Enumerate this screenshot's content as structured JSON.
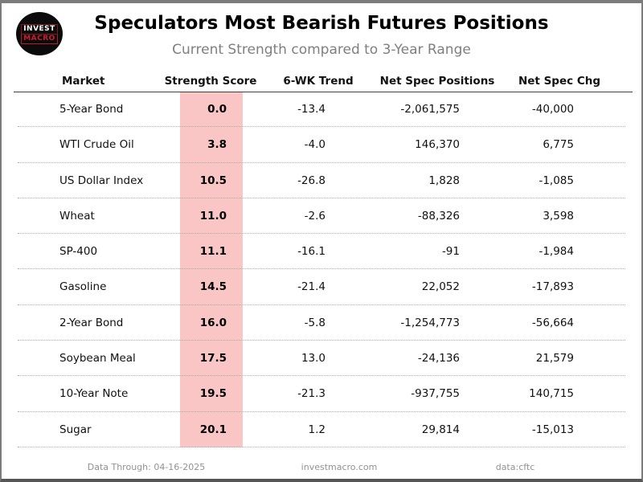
{
  "header": {
    "title": "Speculators Most Bearish Futures Positions",
    "subtitle": "Current Strength compared to 3-Year Range",
    "logo": {
      "line1": "INVEST",
      "line2": "MACRO"
    }
  },
  "chart_data": {
    "type": "table",
    "title": "Speculators Most Bearish Futures Positions",
    "subtitle": "Current Strength compared to 3-Year Range",
    "columns": [
      "Market",
      "Strength Score",
      "6-WK Trend",
      "Net Spec Positions",
      "Net Spec Chg"
    ],
    "rows": [
      {
        "market": "5-Year Bond",
        "strength_score": "0.0",
        "six_wk_trend": "-13.4",
        "net_spec_positions": "-2,061,575",
        "net_spec_chg": "-40,000"
      },
      {
        "market": "WTI Crude Oil",
        "strength_score": "3.8",
        "six_wk_trend": "-4.0",
        "net_spec_positions": "146,370",
        "net_spec_chg": "6,775"
      },
      {
        "market": "US Dollar Index",
        "strength_score": "10.5",
        "six_wk_trend": "-26.8",
        "net_spec_positions": "1,828",
        "net_spec_chg": "-1,085"
      },
      {
        "market": "Wheat",
        "strength_score": "11.0",
        "six_wk_trend": "-2.6",
        "net_spec_positions": "-88,326",
        "net_spec_chg": "3,598"
      },
      {
        "market": "SP-400",
        "strength_score": "11.1",
        "six_wk_trend": "-16.1",
        "net_spec_positions": "-91",
        "net_spec_chg": "-1,984"
      },
      {
        "market": "Gasoline",
        "strength_score": "14.5",
        "six_wk_trend": "-21.4",
        "net_spec_positions": "22,052",
        "net_spec_chg": "-17,893"
      },
      {
        "market": "2-Year Bond",
        "strength_score": "16.0",
        "six_wk_trend": "-5.8",
        "net_spec_positions": "-1,254,773",
        "net_spec_chg": "-56,664"
      },
      {
        "market": "Soybean Meal",
        "strength_score": "17.5",
        "six_wk_trend": "13.0",
        "net_spec_positions": "-24,136",
        "net_spec_chg": "21,579"
      },
      {
        "market": "10-Year Note",
        "strength_score": "19.5",
        "six_wk_trend": "-21.3",
        "net_spec_positions": "-937,755",
        "net_spec_chg": "140,715"
      },
      {
        "market": "Sugar",
        "strength_score": "20.1",
        "six_wk_trend": "1.2",
        "net_spec_positions": "29,814",
        "net_spec_chg": "-15,013"
      }
    ],
    "layout": {
      "highlighted_column": "Strength Score",
      "row_separators": "dotted",
      "legend": "none"
    }
  },
  "footer": {
    "data_through": "Data Through: 04-16-2025",
    "site": "investmacro.com",
    "source": "data:cftc"
  },
  "colors": {
    "highlight_pink": "#f9c5c5",
    "logo_red": "#c8202f",
    "subtitle_gray": "#7f7f7f",
    "footer_gray": "#929292",
    "frame_gray": "#7c7c7c"
  }
}
